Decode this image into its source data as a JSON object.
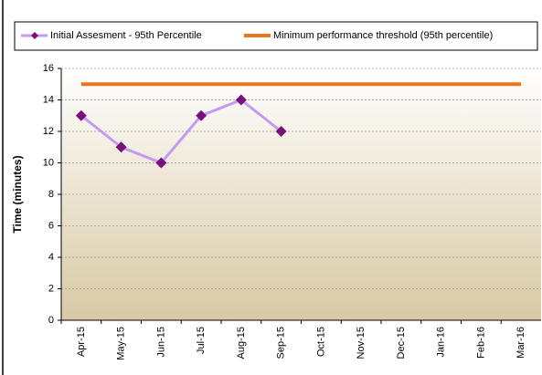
{
  "chart_data": {
    "type": "line",
    "y_label": "Time (minutes)",
    "categories": [
      "Apr-15",
      "May-15",
      "Jun-15",
      "Jul-15",
      "Aug-15",
      "Sep-15",
      "Oct-15",
      "Nov-15",
      "Dec-15",
      "Jan-16",
      "Feb-16",
      "Mar-16"
    ],
    "series": [
      {
        "name": "Initial Assesment - 95th Percentile",
        "color": "#c39bf0",
        "marker_color": "#7b0f7b",
        "values": [
          13,
          11,
          10,
          13,
          14,
          12,
          null,
          null,
          null,
          null,
          null,
          null
        ]
      },
      {
        "name": "Minimum performance threshold (95th percentile)",
        "color": "#e8761e",
        "values": [
          15,
          15,
          15,
          15,
          15,
          15,
          15,
          15,
          15,
          15,
          15,
          15
        ]
      }
    ],
    "ylim": [
      0,
      16
    ],
    "yticks": [
      0,
      2,
      4,
      6,
      8,
      10,
      12,
      14,
      16
    ],
    "grid": true
  }
}
